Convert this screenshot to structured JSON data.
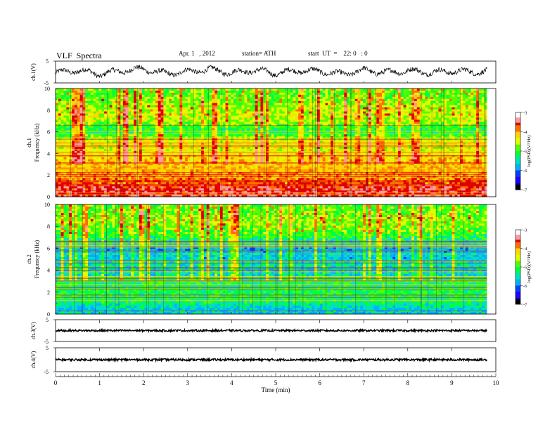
{
  "header": {
    "title": "VLF  Spectra",
    "date": "Apr. 1   , 2012",
    "station": "station= ATH",
    "start": "start  UT  =    22: 0   : 0"
  },
  "colorbar": {
    "label": "log(PSD)(V²/Hz)",
    "ticks": [
      "-3",
      "-4",
      "-5",
      "-6",
      "-7"
    ],
    "colors": [
      "#ffffff",
      "#ff9aa0",
      "#e00000",
      "#ff7000",
      "#ffd800",
      "#dfff00",
      "#50ff00",
      "#00ff40",
      "#00e0c0",
      "#00b0ff",
      "#0040ff",
      "#2000ff",
      "#0000b0",
      "#000000"
    ]
  },
  "chart_data": [
    {
      "type": "line",
      "panel": "ch1-waveform",
      "ylabel": "ch.1(V)",
      "yticks": [
        "5",
        "-5"
      ],
      "ylim": [
        -5,
        5
      ],
      "x": [
        0,
        0.5,
        1,
        1.5,
        2,
        2.5,
        3,
        3.5,
        4,
        4.5,
        5,
        5.5,
        6,
        6.5,
        7,
        7.5,
        8,
        8.5,
        9,
        9.5,
        9.8
      ],
      "series": [
        {
          "values": [
            -0.5,
            0.8,
            -1.0,
            0.6,
            1.4,
            -0.8,
            0.2,
            1.2,
            -0.4,
            0.9,
            -0.6,
            0.7,
            0.3,
            -1.0,
            0.8,
            -0.3,
            0.6,
            -0.2,
            0.4,
            0.1,
            0.2
          ]
        }
      ],
      "grid": false
    },
    {
      "type": "heatmap",
      "panel": "ch1-spectrogram",
      "ylabel": "Frequency  (kHz)",
      "channel_label": "ch.1",
      "yticks": [
        "0",
        "2",
        "4",
        "6",
        "8",
        "10"
      ],
      "ylim": [
        0,
        10
      ],
      "zlim": [
        -7,
        -3
      ],
      "frequency_bands_khz": [
        0.5,
        1.0,
        1.5,
        2.0,
        2.5,
        3.0,
        3.5,
        4.0,
        4.5,
        5.0,
        5.5,
        6.0,
        6.5,
        7.0,
        7.5,
        8.0,
        8.5,
        9.0,
        9.5
      ],
      "mean_log_psd": [
        -3.4,
        -3.6,
        -3.8,
        -3.9,
        -4.0,
        -4.1,
        -4.2,
        -4.3,
        -4.5,
        -4.3,
        -4.8,
        -5.2,
        -5.0,
        -4.6,
        -4.5,
        -4.6,
        -4.7,
        -4.8,
        -4.9
      ]
    },
    {
      "type": "heatmap",
      "panel": "ch2-spectrogram",
      "ylabel": "Frequency  (kHz)",
      "channel_label": "ch.2",
      "yticks": [
        "0",
        "2",
        "4",
        "6",
        "8",
        "10"
      ],
      "ylim": [
        0,
        10
      ],
      "zlim": [
        -7,
        -3
      ],
      "frequency_bands_khz": [
        0.5,
        1.0,
        1.5,
        2.0,
        2.5,
        3.0,
        3.5,
        4.0,
        4.5,
        5.0,
        5.5,
        6.0,
        6.5,
        7.0,
        7.5,
        8.0,
        8.5,
        9.0,
        9.5
      ],
      "mean_log_psd": [
        -5.6,
        -5.3,
        -5.2,
        -5.1,
        -5.3,
        -5.2,
        -5.5,
        -5.6,
        -5.4,
        -5.7,
        -5.6,
        -5.8,
        -5.5,
        -5.1,
        -4.9,
        -4.8,
        -4.7,
        -4.8,
        -4.9
      ]
    },
    {
      "type": "line",
      "panel": "ch3-waveform",
      "ylabel": "ch.3(V)",
      "yticks": [
        "5",
        "-5"
      ],
      "ylim": [
        -5,
        5
      ],
      "x": [
        0,
        9.8
      ],
      "series": [
        {
          "values": [
            0,
            0
          ]
        }
      ]
    },
    {
      "type": "line",
      "panel": "ch4-waveform",
      "ylabel": "ch.4(V)",
      "yticks": [
        "5",
        "-5"
      ],
      "ylim": [
        -5,
        5
      ],
      "x": [
        0,
        9.8
      ],
      "series": [
        {
          "values": [
            0,
            0
          ]
        }
      ]
    }
  ],
  "xaxis": {
    "label": "Time  (min)",
    "ticks": [
      "0",
      "1",
      "2",
      "3",
      "4",
      "5",
      "6",
      "7",
      "8",
      "9",
      "10"
    ],
    "xlim": [
      0,
      10
    ]
  }
}
